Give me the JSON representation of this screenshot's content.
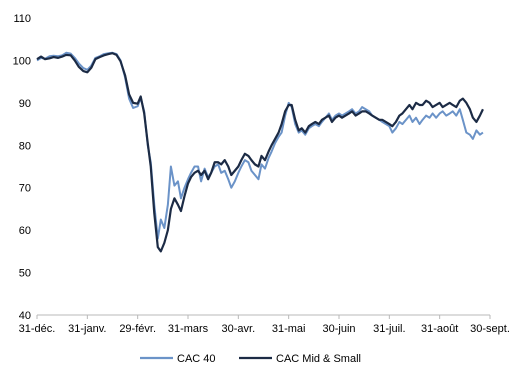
{
  "chart_data": {
    "type": "line",
    "title": "",
    "xlabel": "",
    "ylabel": "",
    "ylim": [
      40,
      110
    ],
    "yticks": [
      40,
      50,
      60,
      70,
      80,
      90,
      100,
      110
    ],
    "x_tick_labels": [
      "31-déc.",
      "31-janv.",
      "29-févr.",
      "31-mars",
      "30-avr.",
      "31-mai",
      "30-juin",
      "31-juil.",
      "31-août",
      "30-sept."
    ],
    "grid": false,
    "legend_position": "bottom",
    "series": [
      {
        "name": "CAC 40",
        "color": "#6b93c8",
        "values": [
          [
            0.0,
            100.0
          ],
          [
            0.08,
            100.6
          ],
          [
            0.16,
            100.4
          ],
          [
            0.25,
            101.0
          ],
          [
            0.33,
            101.1
          ],
          [
            0.42,
            101.0
          ],
          [
            0.5,
            101.2
          ],
          [
            0.58,
            101.8
          ],
          [
            0.67,
            101.6
          ],
          [
            0.75,
            100.6
          ],
          [
            0.83,
            99.3
          ],
          [
            0.92,
            98.2
          ],
          [
            1.0,
            97.8
          ],
          [
            1.08,
            98.8
          ],
          [
            1.16,
            100.6
          ],
          [
            1.25,
            101.0
          ],
          [
            1.33,
            101.5
          ],
          [
            1.42,
            101.7
          ],
          [
            1.5,
            101.8
          ],
          [
            1.58,
            101.5
          ],
          [
            1.66,
            100.0
          ],
          [
            1.75,
            96.0
          ],
          [
            1.83,
            91.0
          ],
          [
            1.91,
            88.8
          ],
          [
            2.0,
            89.2
          ],
          [
            2.06,
            91.2
          ],
          [
            2.13,
            88.0
          ],
          [
            2.2,
            80.0
          ],
          [
            2.26,
            76.0
          ],
          [
            2.33,
            66.0
          ],
          [
            2.4,
            58.0
          ],
          [
            2.46,
            62.5
          ],
          [
            2.53,
            60.5
          ],
          [
            2.6,
            66.0
          ],
          [
            2.66,
            75.0
          ],
          [
            2.73,
            70.5
          ],
          [
            2.8,
            71.5
          ],
          [
            2.86,
            67.5
          ],
          [
            2.93,
            70.0
          ],
          [
            3.0,
            72.0
          ],
          [
            3.06,
            73.5
          ],
          [
            3.13,
            75.0
          ],
          [
            3.2,
            75.0
          ],
          [
            3.26,
            71.5
          ],
          [
            3.33,
            74.5
          ],
          [
            3.4,
            72.5
          ],
          [
            3.46,
            73.5
          ],
          [
            3.53,
            75.0
          ],
          [
            3.6,
            75.5
          ],
          [
            3.66,
            73.5
          ],
          [
            3.73,
            74.0
          ],
          [
            3.8,
            72.0
          ],
          [
            3.86,
            70.0
          ],
          [
            3.93,
            71.5
          ],
          [
            4.0,
            73.5
          ],
          [
            4.06,
            75.0
          ],
          [
            4.13,
            76.5
          ],
          [
            4.2,
            76.0
          ],
          [
            4.26,
            74.0
          ],
          [
            4.33,
            73.0
          ],
          [
            4.4,
            72.0
          ],
          [
            4.46,
            75.5
          ],
          [
            4.53,
            74.5
          ],
          [
            4.6,
            77.0
          ],
          [
            4.66,
            78.5
          ],
          [
            4.73,
            80.5
          ],
          [
            4.8,
            82.0
          ],
          [
            4.86,
            83.0
          ],
          [
            4.93,
            87.0
          ],
          [
            5.0,
            90.0
          ],
          [
            5.06,
            89.0
          ],
          [
            5.13,
            85.0
          ],
          [
            5.2,
            83.0
          ],
          [
            5.26,
            83.5
          ],
          [
            5.33,
            82.5
          ],
          [
            5.4,
            84.0
          ],
          [
            5.46,
            84.5
          ],
          [
            5.53,
            85.0
          ],
          [
            5.6,
            84.5
          ],
          [
            5.66,
            85.5
          ],
          [
            5.73,
            86.5
          ],
          [
            5.8,
            87.5
          ],
          [
            5.86,
            86.0
          ],
          [
            5.93,
            87.0
          ],
          [
            6.0,
            87.5
          ],
          [
            6.06,
            87.0
          ],
          [
            6.13,
            87.5
          ],
          [
            6.2,
            88.0
          ],
          [
            6.26,
            88.5
          ],
          [
            6.33,
            87.5
          ],
          [
            6.4,
            88.0
          ],
          [
            6.46,
            89.0
          ],
          [
            6.53,
            88.5
          ],
          [
            6.6,
            88.0
          ],
          [
            6.66,
            87.0
          ],
          [
            6.73,
            86.5
          ],
          [
            6.8,
            86.0
          ],
          [
            6.86,
            85.5
          ],
          [
            6.93,
            85.0
          ],
          [
            7.0,
            84.5
          ],
          [
            7.06,
            83.0
          ],
          [
            7.13,
            84.0
          ],
          [
            7.2,
            85.5
          ],
          [
            7.26,
            85.0
          ],
          [
            7.33,
            86.0
          ],
          [
            7.4,
            87.0
          ],
          [
            7.46,
            85.5
          ],
          [
            7.53,
            86.5
          ],
          [
            7.6,
            85.0
          ],
          [
            7.66,
            86.0
          ],
          [
            7.73,
            87.0
          ],
          [
            7.8,
            86.5
          ],
          [
            7.86,
            87.5
          ],
          [
            7.93,
            86.5
          ],
          [
            8.0,
            87.5
          ],
          [
            8.06,
            88.0
          ],
          [
            8.13,
            87.0
          ],
          [
            8.2,
            87.5
          ],
          [
            8.26,
            88.0
          ],
          [
            8.33,
            87.0
          ],
          [
            8.4,
            88.5
          ],
          [
            8.46,
            86.0
          ],
          [
            8.53,
            83.0
          ],
          [
            8.6,
            82.5
          ],
          [
            8.66,
            81.5
          ],
          [
            8.73,
            83.5
          ],
          [
            8.8,
            82.5
          ],
          [
            8.86,
            83.0
          ]
        ]
      },
      {
        "name": "CAC Mid & Small",
        "color": "#1c2b45",
        "values": [
          [
            0.0,
            100.3
          ],
          [
            0.08,
            100.9
          ],
          [
            0.16,
            100.3
          ],
          [
            0.25,
            100.5
          ],
          [
            0.33,
            100.8
          ],
          [
            0.42,
            100.6
          ],
          [
            0.5,
            100.9
          ],
          [
            0.58,
            101.3
          ],
          [
            0.67,
            101.2
          ],
          [
            0.75,
            100.0
          ],
          [
            0.83,
            98.5
          ],
          [
            0.92,
            97.5
          ],
          [
            1.0,
            97.2
          ],
          [
            1.08,
            98.3
          ],
          [
            1.16,
            100.3
          ],
          [
            1.25,
            100.8
          ],
          [
            1.33,
            101.2
          ],
          [
            1.42,
            101.5
          ],
          [
            1.5,
            101.7
          ],
          [
            1.58,
            101.3
          ],
          [
            1.66,
            99.8
          ],
          [
            1.75,
            96.5
          ],
          [
            1.83,
            92.0
          ],
          [
            1.91,
            90.0
          ],
          [
            2.0,
            89.8
          ],
          [
            2.06,
            91.5
          ],
          [
            2.13,
            87.5
          ],
          [
            2.2,
            80.5
          ],
          [
            2.26,
            75.0
          ],
          [
            2.33,
            64.0
          ],
          [
            2.4,
            56.0
          ],
          [
            2.46,
            55.0
          ],
          [
            2.53,
            57.0
          ],
          [
            2.6,
            60.0
          ],
          [
            2.66,
            65.0
          ],
          [
            2.73,
            67.5
          ],
          [
            2.8,
            66.0
          ],
          [
            2.86,
            64.5
          ],
          [
            2.93,
            68.0
          ],
          [
            3.0,
            71.0
          ],
          [
            3.06,
            72.5
          ],
          [
            3.13,
            73.5
          ],
          [
            3.2,
            74.0
          ],
          [
            3.26,
            73.0
          ],
          [
            3.33,
            74.0
          ],
          [
            3.4,
            72.0
          ],
          [
            3.46,
            73.5
          ],
          [
            3.53,
            76.0
          ],
          [
            3.6,
            76.0
          ],
          [
            3.66,
            75.5
          ],
          [
            3.73,
            76.5
          ],
          [
            3.8,
            75.0
          ],
          [
            3.86,
            73.0
          ],
          [
            3.93,
            74.0
          ],
          [
            4.0,
            75.0
          ],
          [
            4.06,
            76.5
          ],
          [
            4.13,
            78.0
          ],
          [
            4.2,
            77.5
          ],
          [
            4.26,
            76.5
          ],
          [
            4.33,
            75.5
          ],
          [
            4.4,
            75.0
          ],
          [
            4.46,
            77.5
          ],
          [
            4.53,
            76.5
          ],
          [
            4.6,
            78.5
          ],
          [
            4.66,
            80.0
          ],
          [
            4.73,
            81.5
          ],
          [
            4.8,
            83.0
          ],
          [
            4.86,
            85.0
          ],
          [
            4.93,
            88.0
          ],
          [
            5.0,
            89.5
          ],
          [
            5.06,
            89.5
          ],
          [
            5.13,
            86.0
          ],
          [
            5.2,
            83.5
          ],
          [
            5.26,
            84.0
          ],
          [
            5.33,
            83.0
          ],
          [
            5.4,
            84.5
          ],
          [
            5.46,
            85.0
          ],
          [
            5.53,
            85.5
          ],
          [
            5.6,
            85.0
          ],
          [
            5.66,
            86.0
          ],
          [
            5.73,
            86.5
          ],
          [
            5.8,
            87.0
          ],
          [
            5.86,
            85.5
          ],
          [
            5.93,
            86.5
          ],
          [
            6.0,
            87.0
          ],
          [
            6.06,
            86.5
          ],
          [
            6.13,
            87.0
          ],
          [
            6.2,
            87.5
          ],
          [
            6.26,
            88.0
          ],
          [
            6.33,
            87.0
          ],
          [
            6.4,
            87.5
          ],
          [
            6.46,
            88.0
          ],
          [
            6.53,
            88.0
          ],
          [
            6.6,
            87.5
          ],
          [
            6.66,
            87.0
          ],
          [
            6.73,
            86.5
          ],
          [
            6.8,
            86.0
          ],
          [
            6.86,
            86.0
          ],
          [
            6.93,
            85.5
          ],
          [
            7.0,
            85.0
          ],
          [
            7.06,
            84.5
          ],
          [
            7.13,
            85.5
          ],
          [
            7.2,
            87.0
          ],
          [
            7.26,
            87.5
          ],
          [
            7.33,
            88.5
          ],
          [
            7.4,
            89.5
          ],
          [
            7.46,
            88.5
          ],
          [
            7.53,
            90.0
          ],
          [
            7.6,
            89.5
          ],
          [
            7.66,
            89.5
          ],
          [
            7.73,
            90.5
          ],
          [
            7.8,
            90.0
          ],
          [
            7.86,
            89.0
          ],
          [
            7.93,
            89.5
          ],
          [
            8.0,
            90.0
          ],
          [
            8.06,
            89.0
          ],
          [
            8.13,
            89.5
          ],
          [
            8.2,
            90.0
          ],
          [
            8.26,
            89.5
          ],
          [
            8.33,
            89.0
          ],
          [
            8.4,
            90.5
          ],
          [
            8.46,
            91.0
          ],
          [
            8.53,
            90.0
          ],
          [
            8.6,
            88.5
          ],
          [
            8.66,
            86.5
          ],
          [
            8.73,
            85.5
          ],
          [
            8.8,
            87.0
          ],
          [
            8.86,
            88.5
          ]
        ]
      }
    ]
  }
}
